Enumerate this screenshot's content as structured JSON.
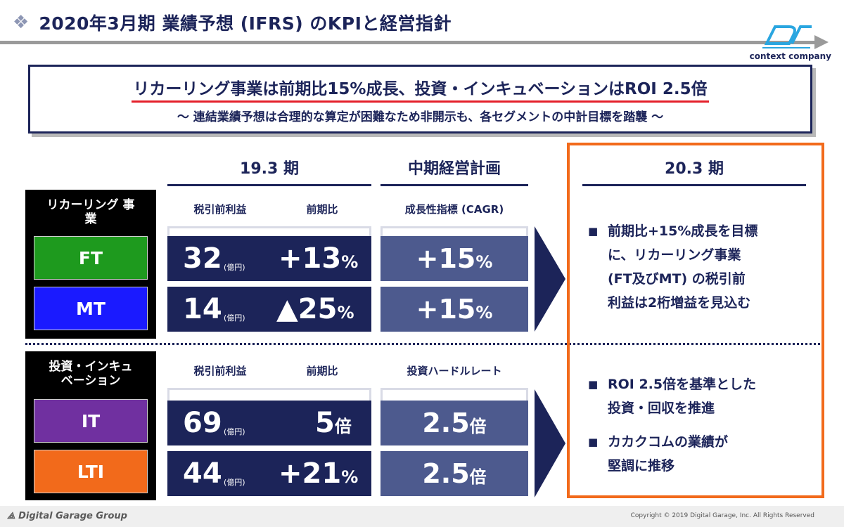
{
  "header": {
    "title": "2020年3月期 業績予想 (IFRS) のKPIと経営指針",
    "bullet_icon": "diamond-icon",
    "logo_text": "context company"
  },
  "headline": {
    "main": "リカーリング事業は前期比15%成長、投資・インキュベーションはROI 2.5倍",
    "sub": "～ 連結業績予想は合理的な算定が困難なため非開示も、各セグメントの中計目標を踏襲 ～"
  },
  "columns": {
    "period_1903": "19.3 期",
    "mid_plan": "中期経営計画",
    "period_2003": "20.3 期"
  },
  "recurring": {
    "label": "リカーリング 事業",
    "sub_profit": "税引前利益",
    "sub_yoy": "前期比",
    "sub_metric": "成長性指標 (CAGR)",
    "rows": [
      {
        "segment": "FT",
        "color": "#1e9a1e",
        "profit": "32",
        "unit": "(億円)",
        "yoy": "+13",
        "yoy_unit": "%",
        "target": "+15",
        "target_unit": "%"
      },
      {
        "segment": "MT",
        "color": "#1a1aff",
        "profit": "14",
        "unit": "(億円)",
        "yoy": "▲25",
        "yoy_unit": "%",
        "target": "+15",
        "target_unit": "%"
      }
    ],
    "note_lines": [
      "前期比+15%成長を目標",
      "に、リカーリング事業",
      "(FT及びMT) の税引前",
      "利益は2桁増益を見込む"
    ]
  },
  "investment": {
    "label": "投資・インキュ ベーション",
    "sub_profit": "税引前利益",
    "sub_yoy": "前期比",
    "sub_metric": "投資ハードルレート",
    "rows": [
      {
        "segment": "IT",
        "color": "#7030a0",
        "profit": "69",
        "unit": "(億円)",
        "yoy": "5",
        "yoy_unit": "倍",
        "target": "2.5",
        "target_unit": "倍"
      },
      {
        "segment": "LTI",
        "color": "#f26a1b",
        "profit": "44",
        "unit": "(億円)",
        "yoy": "+21",
        "yoy_unit": "%",
        "target": "2.5",
        "target_unit": "倍"
      }
    ],
    "note_1": [
      "ROI 2.5倍を基準とした",
      "投資・回収を推進"
    ],
    "note_2": [
      "カカクコムの業績が",
      "堅調に推移"
    ]
  },
  "footer": {
    "brand": "Digital Garage Group",
    "copyright": "Copyright © 2019 Digital Garage, Inc. All Rights Reserved"
  }
}
